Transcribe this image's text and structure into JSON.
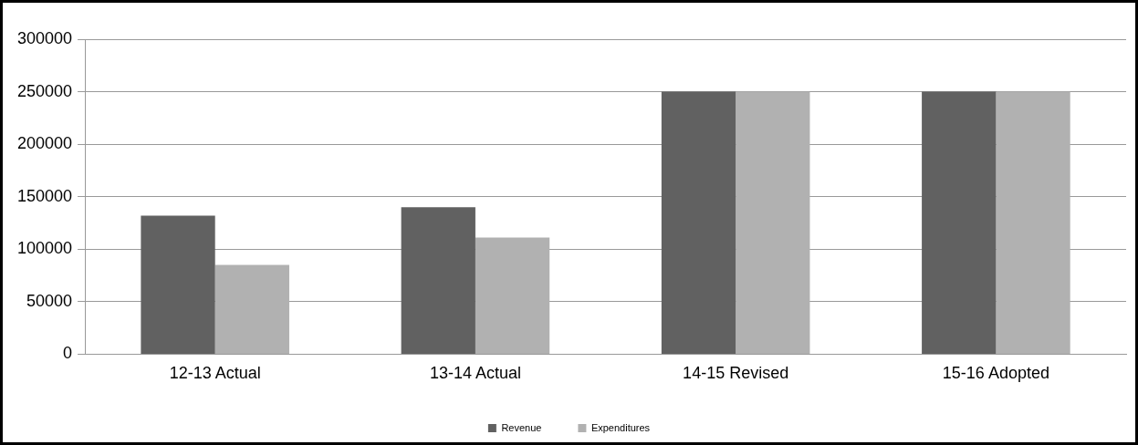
{
  "chart_data": {
    "type": "bar",
    "categories": [
      "12-13 Actual",
      "13-14 Actual",
      "14-15 Revised",
      "15-16 Adopted"
    ],
    "series": [
      {
        "name": "Revenue",
        "color": "#616161",
        "values": [
          132000,
          140000,
          250000,
          250000
        ]
      },
      {
        "name": "Expenditures",
        "color": "#b1b1b1",
        "values": [
          85000,
          111000,
          250000,
          250000
        ]
      }
    ],
    "ylim": [
      0,
      300000
    ],
    "yticks": [
      0,
      50000,
      100000,
      150000,
      200000,
      250000,
      300000
    ],
    "grid": "y",
    "legend": "bottom"
  }
}
